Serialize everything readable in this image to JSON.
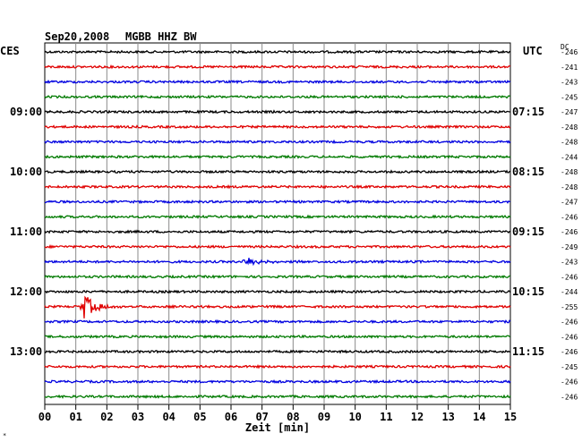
{
  "header": {
    "date": "Sep20,2008",
    "station": "MGBB HHZ BW",
    "left_zone": "CES",
    "right_zone": "UTC",
    "dc_label": "DC"
  },
  "chart_data": {
    "type": "line",
    "xlabel": "Zeit [min]",
    "x_ticks": [
      "00",
      "01",
      "02",
      "03",
      "04",
      "05",
      "06",
      "07",
      "08",
      "09",
      "10",
      "11",
      "12",
      "13",
      "14",
      "15"
    ],
    "xlim": [
      0,
      15
    ],
    "trace_colors": [
      "#000000",
      "#e00000",
      "#0000e0",
      "#007a00"
    ],
    "left_hour_labels": [
      "09:00",
      "10:00",
      "11:00",
      "12:00",
      "13:00"
    ],
    "right_hour_labels": [
      "07:15",
      "08:15",
      "09:15",
      "10:15",
      "11:15"
    ],
    "dc_offsets": [
      "-246",
      "-241",
      "-243",
      "-245",
      "-247",
      "-248",
      "-248",
      "-244",
      "-248",
      "-248",
      "-247",
      "-246",
      "-246",
      "-249",
      "-243",
      "-246",
      "-244",
      "-255",
      "-246",
      "-246",
      "-246",
      "-245",
      "-246",
      "-246"
    ],
    "events": [
      {
        "trace": 14,
        "minute": 6.45,
        "amplitude": "medium"
      },
      {
        "trace": 17,
        "minute": 1.25,
        "amplitude": "large"
      }
    ],
    "footnote": "*"
  }
}
